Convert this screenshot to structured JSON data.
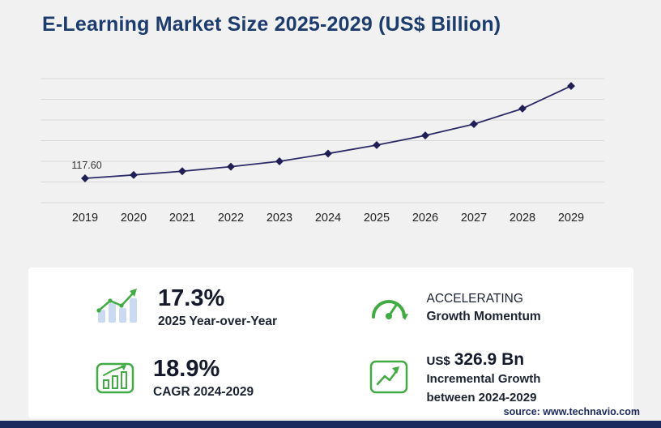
{
  "header": {
    "title": "E-Learning Market Size 2025-2029 (US$ Billion)"
  },
  "chart_data": {
    "type": "line",
    "title": "E-Learning Market Size 2025-2029 (US$ Billion)",
    "x": [
      "2019",
      "2020",
      "2021",
      "2022",
      "2023",
      "2024",
      "2025",
      "2026",
      "2027",
      "2028",
      "2029"
    ],
    "values": [
      117.6,
      134,
      152,
      174,
      200,
      237.5,
      278.6,
      325,
      380,
      455,
      564.4
    ],
    "first_point_label": "117.60",
    "xlabel": "",
    "ylabel": "",
    "ylim": [
      0,
      600
    ],
    "grid": true,
    "legend": false,
    "line_color": "#2b2a66",
    "marker_color": "#1f1e55",
    "grid_color": "#d9d9d9",
    "axis_label_color": "#222222",
    "point_label_color": "#333333"
  },
  "stats": {
    "yoy": {
      "value": "17.3%",
      "label": "2025 Year-over-Year"
    },
    "momentum": {
      "line1": "ACCELERATING",
      "line2": "Growth Momentum"
    },
    "cagr": {
      "value": "18.9%",
      "label": "CAGR 2024-2029"
    },
    "incremental": {
      "currency": "US$",
      "value": "326.9 Bn",
      "line1": "Incremental Growth",
      "line2": "between 2024-2029"
    }
  },
  "footer": {
    "source": "source: www.technavio.com"
  },
  "colors": {
    "accent_green": "#42ab44",
    "bar_blue": "#c9daf1",
    "navy": "#1b2a5e"
  }
}
